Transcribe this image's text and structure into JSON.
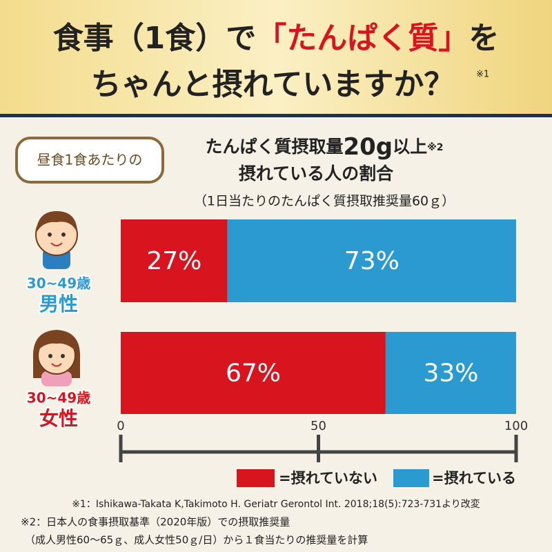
{
  "header": {
    "title_parts": [
      "食事（1食）で",
      "「たんぱく質」",
      "を"
    ],
    "title_line2": "ちゃんと摂れていますか？",
    "title_note": "※1"
  },
  "badge": "昼食1食あたりの",
  "chart_data": {
    "type": "stacked-bar-horizontal",
    "heading_parts": [
      "たんぱく質摂取量",
      "20g",
      "以上",
      "※2"
    ],
    "heading_line2": "摂れている人の割合",
    "subheading": "（1日当たりのたんぱく質摂取推奨量60ｇ）",
    "categories": [
      [
        "30~49歳",
        "男性"
      ],
      [
        "30~49歳",
        "女性"
      ]
    ],
    "series": [
      {
        "name": "=摂れていない",
        "color": "#d8141f",
        "values": [
          27,
          67
        ],
        "value_labels": [
          "27%",
          "67%"
        ]
      },
      {
        "name": "=摂れている",
        "color": "#2a9ad0",
        "values": [
          73,
          33
        ],
        "value_labels": [
          "73%",
          "33%"
        ]
      }
    ],
    "xlim": [
      0,
      100
    ],
    "xticks": [
      0,
      50,
      100
    ]
  },
  "footnotes": [
    "※1：Ishikawa-Takata K,Takimoto H. Geriatr Gerontol Int. 2018;18(5):723-731より改変",
    "※2：日本人の食事摂取基準（2020年版）での摂取推奨量",
    "（成人男性60〜65ｇ、成人女性50ｇ/日）から１食当たりの推奨量を計算"
  ]
}
